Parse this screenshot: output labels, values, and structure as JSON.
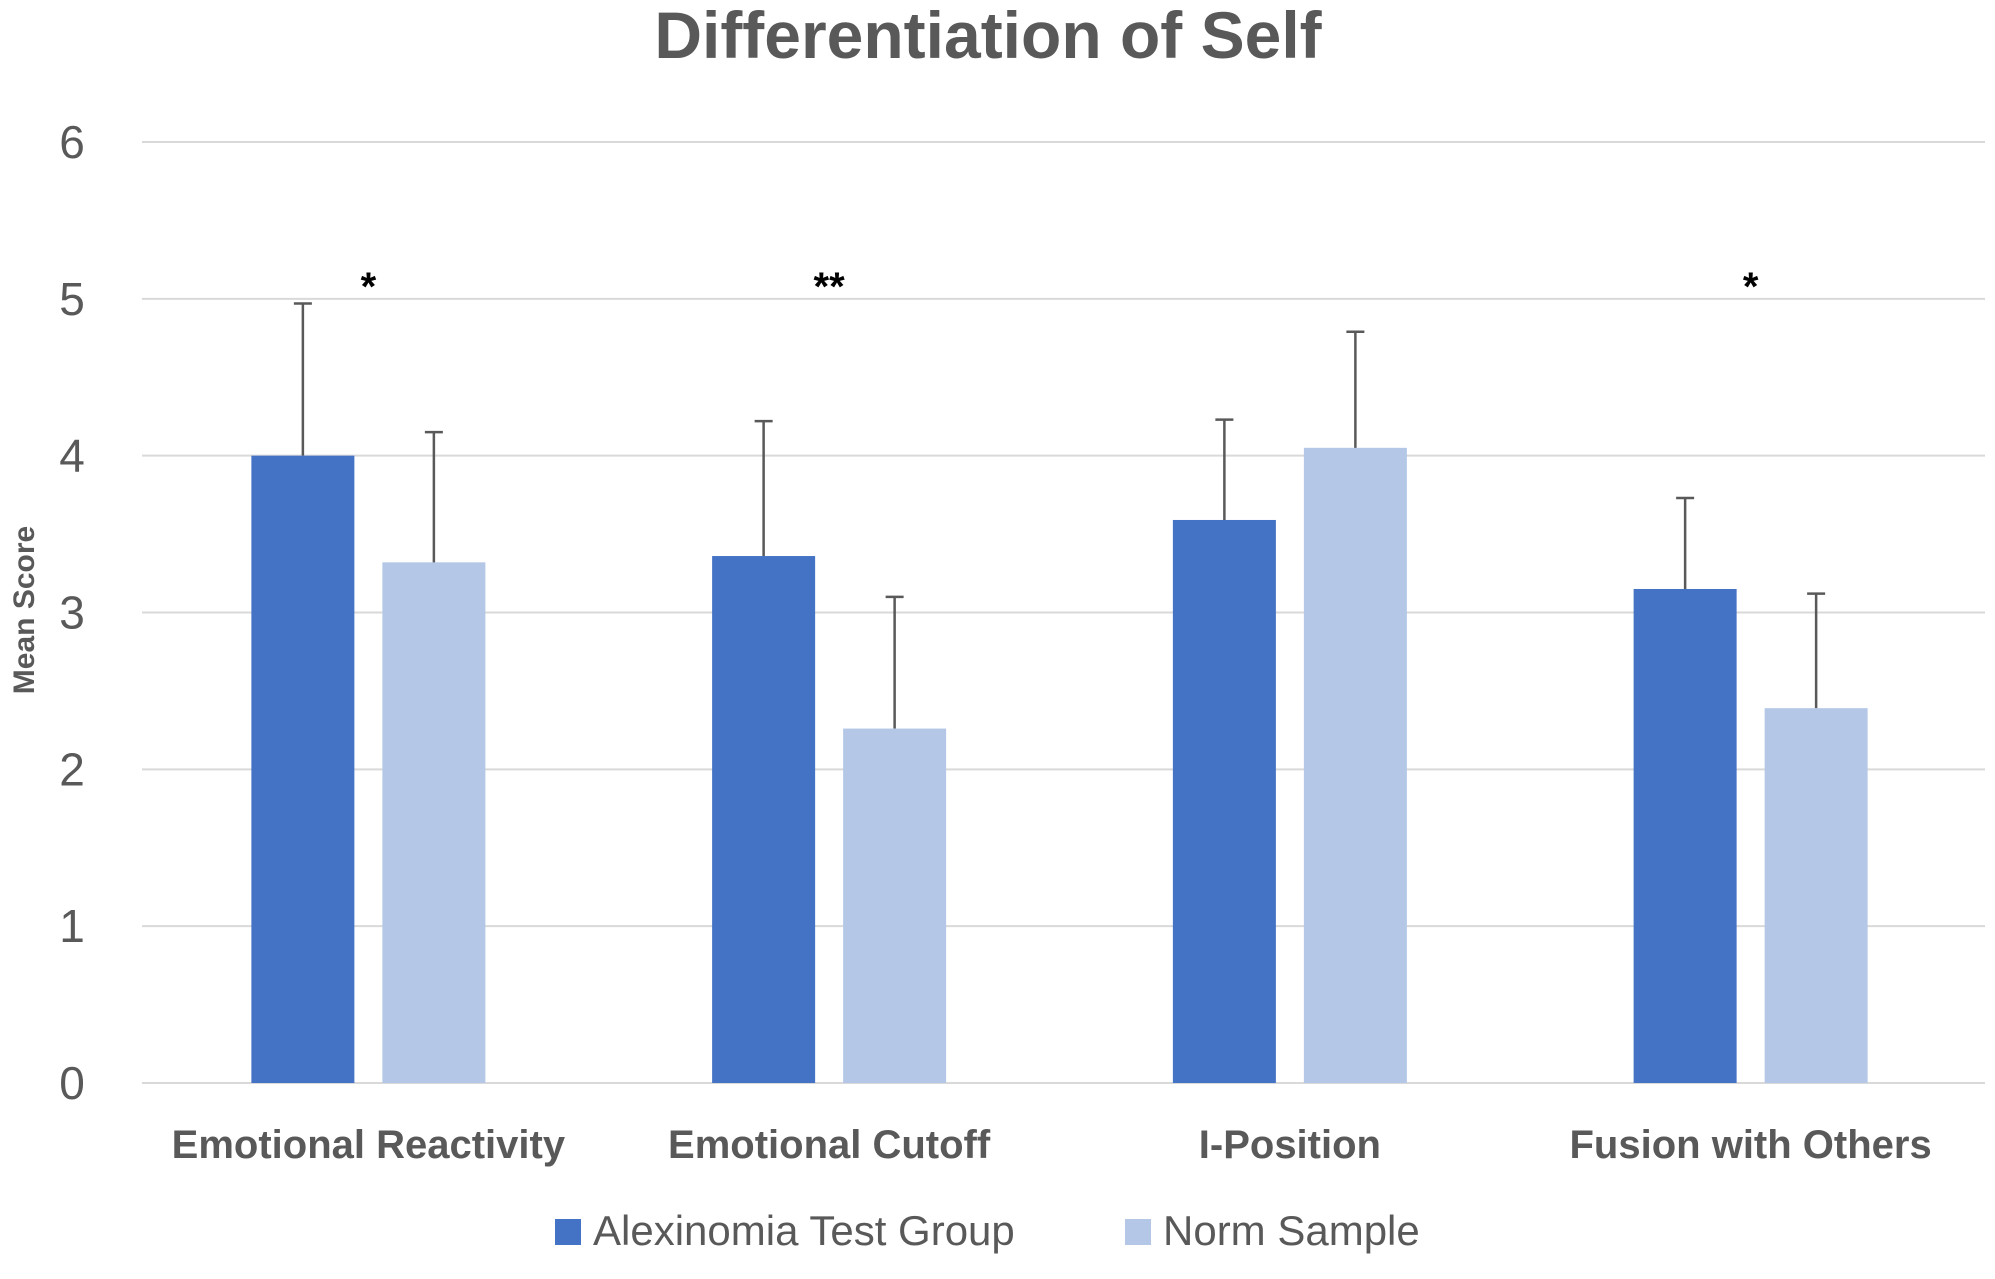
{
  "chart_data": {
    "type": "bar",
    "title": "Differentiation of Self",
    "xlabel": "",
    "ylabel": "Mean Score",
    "ylim": [
      0,
      6
    ],
    "yticks": [
      0,
      1,
      2,
      3,
      4,
      5,
      6
    ],
    "ytick_labels": [
      "0",
      "1",
      "2",
      "3",
      "4",
      "5",
      "6"
    ],
    "grid": true,
    "legend_position": "bottom",
    "categories": [
      "Emotional Reactivity",
      "Emotional Cutoff",
      "I-Position",
      "Fusion with Others"
    ],
    "series": [
      {
        "name": "Alexinomia Test Group",
        "color": "#4472C4",
        "values": [
          4.0,
          3.36,
          3.59,
          3.15
        ],
        "error_upper": [
          4.97,
          4.22,
          4.23,
          3.73
        ]
      },
      {
        "name": "Norm Sample",
        "color": "#B4C7E7",
        "values": [
          3.32,
          2.26,
          4.05,
          2.39
        ],
        "error_upper": [
          4.15,
          3.1,
          4.79,
          3.12
        ]
      }
    ],
    "annotations": [
      "*",
      "**",
      "",
      "*"
    ],
    "grid_color": "#D9D9D9",
    "error_bar_color": "#595959",
    "text_color": "#595959",
    "annotation_color": "#000000"
  }
}
